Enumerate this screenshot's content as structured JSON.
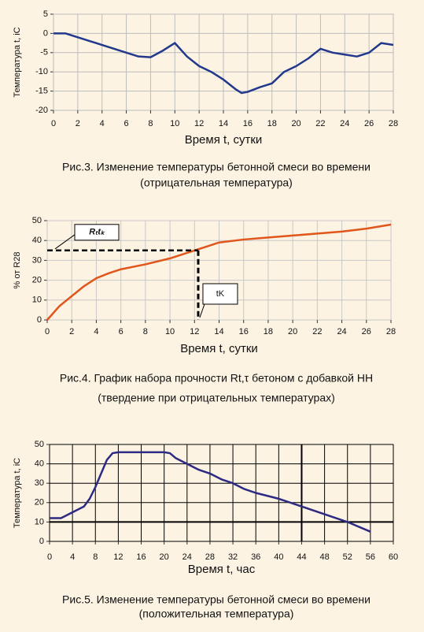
{
  "chart_data": [
    {
      "type": "line",
      "y_label": "Температура t, iC",
      "x_label": "Время t, сутки",
      "caption": [
        "Рис.3. Изменение температуры бетонной смеси во времени",
        "(отрицательная температура)"
      ],
      "x": [
        0,
        1,
        2,
        3,
        4,
        5,
        6,
        7,
        8,
        9,
        10,
        11,
        12,
        13,
        14,
        15,
        15.5,
        16,
        17,
        18,
        19,
        20,
        21,
        22,
        23,
        24,
        25,
        26,
        27,
        28
      ],
      "values": [
        0,
        0,
        -1,
        -2,
        -3,
        -4,
        -5,
        -6,
        -6.2,
        -4.5,
        -2.5,
        -6,
        -8.5,
        -10,
        -12,
        -14.5,
        -15.5,
        -15.2,
        -14,
        -13,
        -10,
        -8.5,
        -6.5,
        -4,
        -5,
        -5.5,
        -6,
        -5,
        -2.5,
        -3
      ],
      "color": "#22388c",
      "grid": true,
      "grid_color": "#bdbdbd",
      "xlim": [
        0,
        28
      ],
      "xticks": [
        0,
        2,
        4,
        6,
        8,
        10,
        12,
        14,
        16,
        18,
        20,
        22,
        24,
        26,
        28
      ],
      "ylim": [
        -20,
        5
      ],
      "yticks": [
        -20,
        -15,
        -10,
        -5,
        0,
        5
      ]
    },
    {
      "type": "line",
      "y_label": "% от R28",
      "x_label": "Время t, сутки",
      "caption": [
        "Рис.4. График набора прочности Rt,τ бетоном с добавкой НН",
        "(твердение при отрицательных температурах)"
      ],
      "x": [
        0,
        1,
        2,
        3,
        4,
        5,
        6,
        8,
        10,
        12,
        13,
        14,
        16,
        18,
        20,
        22,
        24,
        26,
        28
      ],
      "values": [
        0,
        7,
        12,
        17,
        21,
        23.5,
        25.5,
        28,
        31,
        35,
        37,
        39,
        40.5,
        41.5,
        42.5,
        43.5,
        44.5,
        46,
        48
      ],
      "color": "#e0561b",
      "grid": true,
      "grid_color": "#c8c8c8",
      "xlim": [
        0,
        28
      ],
      "xticks": [
        0,
        2,
        4,
        6,
        8,
        10,
        12,
        14,
        16,
        18,
        20,
        22,
        24,
        26,
        28
      ],
      "ylim": [
        0,
        50
      ],
      "yticks": [
        0,
        10,
        20,
        30,
        40,
        50
      ],
      "reference": {
        "x": 12.3,
        "y": 35,
        "y_label": "Rₜtₖ",
        "x_label": "tK"
      }
    },
    {
      "type": "line",
      "y_label": "Температура t, iC",
      "x_label": "Время t, час",
      "caption": [
        "Рис.5. Изменение температуры бетонной смеси во времени",
        "(положительная температура)"
      ],
      "x": [
        0,
        2,
        4,
        6,
        7,
        8,
        9,
        10,
        11,
        12,
        16,
        20,
        21,
        22,
        24,
        26,
        28,
        30,
        32,
        34,
        36,
        40,
        44,
        48,
        52,
        56
      ],
      "values": [
        12,
        12,
        15,
        18,
        22,
        28,
        35,
        42,
        45.5,
        46,
        46,
        46,
        45.5,
        43,
        40,
        37,
        35,
        32,
        30,
        27,
        25,
        22,
        18,
        14,
        10,
        5
      ],
      "color": "#2c2a82",
      "grid": true,
      "grid_color": "#000000",
      "xlim": [
        0,
        60
      ],
      "xticks": [
        0,
        4,
        8,
        12,
        16,
        20,
        24,
        28,
        32,
        36,
        40,
        44,
        48,
        52,
        56,
        60
      ],
      "ylim": [
        0,
        50
      ],
      "yticks": [
        0,
        10,
        20,
        30,
        40,
        50
      ],
      "bold_lines": {
        "x": 44,
        "y": 10
      }
    }
  ]
}
